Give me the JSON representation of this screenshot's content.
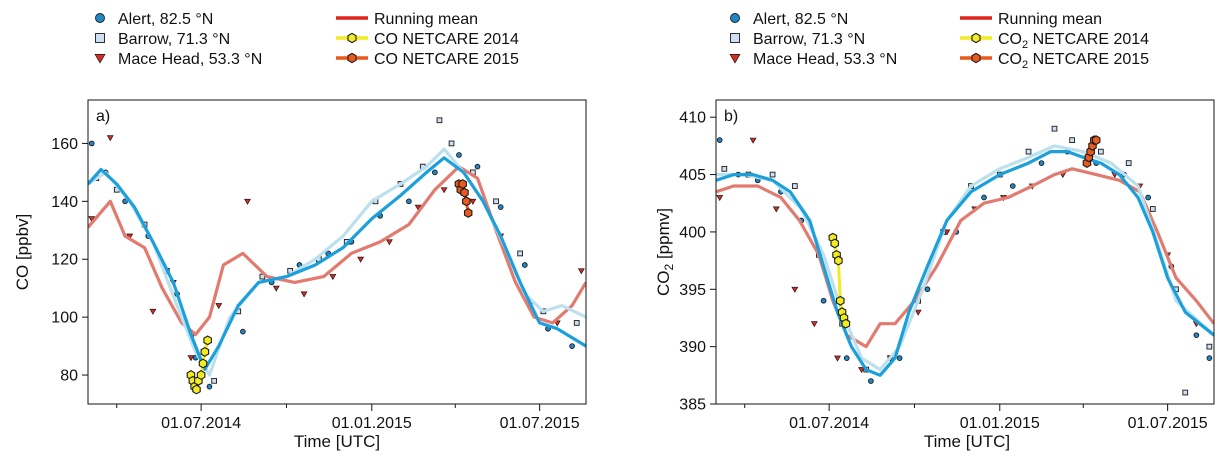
{
  "colors": {
    "alert": "#1e88c6",
    "barrow": "#cde0f2",
    "mace_head": "#d62b22",
    "running_mean": "#e0251c",
    "netcare_2014": "#f2ec1f",
    "netcare_2015": "#ea5a1c",
    "mean_alert": "#1ca0dc",
    "mean_barrow": "#bde0ee",
    "mean_mace_head": "#e27a6f"
  },
  "chart_data": [
    {
      "type": "scatter",
      "panel_label": "a)",
      "xlabel": "Time [UTC]",
      "ylabel": "CO [ppbv]",
      "ylabel_sub": "",
      "ylabel_unit": "",
      "x_ticks": [
        "01.07.2014",
        "01.01.2015",
        "01.07.2015"
      ],
      "x_tick_values": [
        "2014-07-01",
        "2015-01-01",
        "2015-07-01"
      ],
      "xlim": [
        "2014-03-01",
        "2015-08-20"
      ],
      "ylim": [
        70,
        175
      ],
      "y_ticks": [
        80,
        100,
        120,
        140,
        160
      ],
      "grid": false,
      "legend_left": [
        {
          "label": "Alert, 82.5 °N",
          "marker": "circle",
          "color": "#1e88c6"
        },
        {
          "label": "Barrow, 71.3 °N",
          "marker": "square",
          "color": "#cde0f2"
        },
        {
          "label": "Mace Head, 53.3 °N",
          "marker": "triangle-down",
          "color": "#d62b22"
        }
      ],
      "legend_right": [
        {
          "label": "Running mean",
          "sub": "",
          "tail": "",
          "style": "line",
          "color": "#e0251c"
        },
        {
          "label": "CO NETCARE 2014",
          "sub": "",
          "tail": "",
          "style": "line-marker",
          "color": "#f2ec1f"
        },
        {
          "label": "CO NETCARE 2015",
          "sub": "",
          "tail": "",
          "style": "line-marker",
          "color": "#ea5a1c"
        }
      ],
      "series": [
        {
          "name": "Alert, 82.5 °N",
          "kind": "points",
          "x": [
            "2014-03-05",
            "2014-03-20",
            "2014-04-10",
            "2014-05-05",
            "2014-06-05",
            "2014-06-25",
            "2014-07-10",
            "2014-08-15",
            "2014-09-15",
            "2014-10-15",
            "2014-11-15",
            "2014-12-10",
            "2015-01-10",
            "2015-02-10",
            "2015-03-10",
            "2015-04-05",
            "2015-04-25",
            "2015-05-20",
            "2015-06-15",
            "2015-07-10",
            "2015-08-05"
          ],
          "y": [
            160,
            150,
            140,
            128,
            108,
            86,
            76,
            95,
            112,
            118,
            122,
            126,
            135,
            140,
            150,
            156,
            152,
            138,
            118,
            96,
            90
          ]
        },
        {
          "name": "Barrow, 71.3 °N",
          "kind": "points",
          "x": [
            "2014-03-10",
            "2014-04-01",
            "2014-05-01",
            "2014-05-25",
            "2014-06-20",
            "2014-07-15",
            "2014-08-10",
            "2014-09-05",
            "2014-10-05",
            "2014-11-05",
            "2014-12-05",
            "2015-01-05",
            "2015-02-01",
            "2015-02-25",
            "2015-03-15",
            "2015-03-28",
            "2015-04-20",
            "2015-05-15",
            "2015-06-10",
            "2015-07-05",
            "2015-08-10"
          ],
          "y": [
            148,
            144,
            132,
            116,
            94,
            78,
            102,
            114,
            116,
            120,
            126,
            140,
            146,
            152,
            168,
            160,
            150,
            140,
            122,
            102,
            98
          ]
        },
        {
          "name": "Mace Head, 53.3 °N",
          "kind": "points",
          "x": [
            "2014-03-05",
            "2014-03-25",
            "2014-04-15",
            "2014-05-10",
            "2014-06-01",
            "2014-06-20",
            "2014-07-20",
            "2014-08-20",
            "2014-09-20",
            "2014-10-20",
            "2014-11-20",
            "2014-12-20",
            "2015-01-20",
            "2015-02-20",
            "2015-03-20",
            "2015-04-20",
            "2015-05-20",
            "2015-06-20",
            "2015-07-20",
            "2015-08-15"
          ],
          "y": [
            134,
            162,
            128,
            102,
            112,
            86,
            104,
            140,
            110,
            108,
            114,
            120,
            126,
            138,
            144,
            140,
            128,
            104,
            98,
            116
          ]
        },
        {
          "name": "",
          "kind": "mean",
          "station": "Alert",
          "x": [
            "2014-03-01",
            "2014-03-15",
            "2014-04-01",
            "2014-04-20",
            "2014-05-10",
            "2014-06-01",
            "2014-06-20",
            "2014-07-05",
            "2014-07-20",
            "2014-08-10",
            "2014-09-01",
            "2014-10-01",
            "2014-11-01",
            "2014-12-01",
            "2015-01-01",
            "2015-02-01",
            "2015-03-01",
            "2015-03-20",
            "2015-04-10",
            "2015-05-01",
            "2015-05-20",
            "2015-06-10",
            "2015-07-01",
            "2015-07-20",
            "2015-08-20"
          ],
          "y": [
            146,
            151,
            146,
            138,
            126,
            112,
            94,
            82,
            90,
            104,
            112,
            114,
            118,
            124,
            134,
            142,
            150,
            155,
            150,
            140,
            128,
            112,
            98,
            96,
            90
          ]
        },
        {
          "name": "",
          "kind": "mean",
          "station": "Barrow",
          "x": [
            "2014-03-01",
            "2014-03-20",
            "2014-04-15",
            "2014-05-10",
            "2014-06-05",
            "2014-06-25",
            "2014-07-10",
            "2014-08-01",
            "2014-09-01",
            "2014-10-01",
            "2014-11-01",
            "2014-12-01",
            "2015-01-01",
            "2015-02-01",
            "2015-03-01",
            "2015-03-20",
            "2015-04-10",
            "2015-05-01",
            "2015-05-25",
            "2015-06-15",
            "2015-07-05",
            "2015-07-25",
            "2015-08-20"
          ],
          "y": [
            146,
            150,
            140,
            126,
            104,
            88,
            80,
            100,
            112,
            114,
            120,
            128,
            140,
            146,
            152,
            158,
            150,
            140,
            124,
            108,
            102,
            104,
            100
          ]
        },
        {
          "name": "",
          "kind": "mean",
          "station": "Mace Head",
          "x": [
            "2014-03-01",
            "2014-03-25",
            "2014-04-10",
            "2014-05-01",
            "2014-05-20",
            "2014-06-10",
            "2014-06-25",
            "2014-07-10",
            "2014-07-25",
            "2014-08-15",
            "2014-09-10",
            "2014-10-10",
            "2014-11-10",
            "2014-12-10",
            "2015-01-10",
            "2015-02-10",
            "2015-03-10",
            "2015-04-05",
            "2015-04-25",
            "2015-05-15",
            "2015-06-05",
            "2015-06-25",
            "2015-07-15",
            "2015-08-05",
            "2015-08-20"
          ],
          "y": [
            131,
            140,
            128,
            124,
            110,
            98,
            94,
            100,
            118,
            122,
            114,
            112,
            114,
            122,
            126,
            132,
            144,
            152,
            148,
            130,
            112,
            100,
            98,
            104,
            112
          ]
        },
        {
          "name": "CO NETCARE 2014",
          "kind": "netcare",
          "x": [
            "2014-06-20",
            "2014-06-22",
            "2014-06-24",
            "2014-06-26",
            "2014-06-28",
            "2014-07-01",
            "2014-07-03",
            "2014-07-05",
            "2014-07-08"
          ],
          "y": [
            80,
            78,
            76,
            75,
            78,
            80,
            84,
            88,
            92
          ]
        },
        {
          "name": "CO NETCARE 2015",
          "kind": "netcare",
          "x": [
            "2015-04-05",
            "2015-04-07",
            "2015-04-09",
            "2015-04-11",
            "2015-04-13",
            "2015-04-15"
          ],
          "y": [
            146,
            144,
            146,
            143,
            140,
            136
          ]
        }
      ]
    },
    {
      "type": "scatter",
      "panel_label": "b)",
      "xlabel": "Time [UTC]",
      "ylabel": "CO",
      "ylabel_sub": "2",
      "ylabel_unit": " [ppmv]",
      "x_ticks": [
        "01.07.2014",
        "01.01.2015",
        "01.07.2015"
      ],
      "x_tick_values": [
        "2014-07-01",
        "2015-01-01",
        "2015-07-01"
      ],
      "xlim": [
        "2014-03-01",
        "2015-08-20"
      ],
      "ylim": [
        385,
        411.5
      ],
      "y_ticks": [
        385,
        390,
        395,
        400,
        405,
        410
      ],
      "grid": false,
      "legend_left": [
        {
          "label": "Alert, 82.5 °N",
          "marker": "circle",
          "color": "#1e88c6"
        },
        {
          "label": "Barrow, 71.3 °N",
          "marker": "square",
          "color": "#cde0f2"
        },
        {
          "label": "Mace Head, 53.3 °N",
          "marker": "triangle-down",
          "color": "#d62b22"
        }
      ],
      "legend_right": [
        {
          "label": "Running mean",
          "sub": "",
          "tail": "",
          "style": "line",
          "color": "#e0251c"
        },
        {
          "label": "CO",
          "sub": "2",
          "tail": " NETCARE 2014",
          "style": "line-marker",
          "color": "#f2ec1f"
        },
        {
          "label": "CO",
          "sub": "2",
          "tail": " NETCARE 2015",
          "style": "line-marker",
          "color": "#ea5a1c"
        }
      ],
      "series": [
        {
          "name": "Alert, 82.5 °N",
          "kind": "points",
          "x": [
            "2014-03-05",
            "2014-03-25",
            "2014-04-15",
            "2014-05-10",
            "2014-06-01",
            "2014-06-25",
            "2014-07-20",
            "2014-08-15",
            "2014-09-15",
            "2014-10-15",
            "2014-11-15",
            "2014-12-15",
            "2015-01-15",
            "2015-02-15",
            "2015-03-15",
            "2015-04-15",
            "2015-05-15",
            "2015-06-10",
            "2015-07-05",
            "2015-08-01",
            "2015-08-15"
          ],
          "y": [
            408,
            405,
            404.5,
            403.5,
            401,
            394,
            389,
            387,
            389,
            395,
            400,
            403,
            404,
            406,
            407,
            406,
            405,
            403,
            397,
            391,
            389
          ]
        },
        {
          "name": "Barrow, 71.3 °N",
          "kind": "points",
          "x": [
            "2014-03-10",
            "2014-04-05",
            "2014-05-01",
            "2014-05-25",
            "2014-06-20",
            "2014-07-15",
            "2014-08-10",
            "2014-09-05",
            "2014-10-05",
            "2014-11-01",
            "2014-12-01",
            "2015-01-01",
            "2015-02-01",
            "2015-03-01",
            "2015-03-20",
            "2015-04-20",
            "2015-05-20",
            "2015-06-15",
            "2015-07-10",
            "2015-07-20",
            "2015-08-15"
          ],
          "y": [
            405.5,
            405,
            405,
            404,
            398,
            392,
            388,
            389,
            394,
            400,
            404,
            405,
            407,
            409,
            408,
            407,
            406,
            402,
            395,
            386,
            390
          ]
        },
        {
          "name": "Mace Head, 53.3 °N",
          "kind": "points",
          "x": [
            "2014-03-05",
            "2014-04-10",
            "2014-05-05",
            "2014-05-25",
            "2014-06-15",
            "2014-07-10",
            "2014-08-05",
            "2014-09-05",
            "2014-10-05",
            "2014-11-05",
            "2014-12-05",
            "2015-01-05",
            "2015-02-05",
            "2015-03-10",
            "2015-04-05",
            "2015-05-05",
            "2015-06-01",
            "2015-07-01",
            "2015-08-01"
          ],
          "y": [
            403,
            408,
            402,
            395,
            392,
            389,
            388,
            389,
            393,
            400,
            402,
            403,
            404,
            405,
            406,
            405,
            404,
            398,
            392
          ]
        },
        {
          "name": "",
          "kind": "mean",
          "station": "Alert",
          "x": [
            "2014-03-01",
            "2014-03-20",
            "2014-04-10",
            "2014-05-01",
            "2014-05-20",
            "2014-06-10",
            "2014-06-25",
            "2014-07-10",
            "2014-07-25",
            "2014-08-10",
            "2014-08-25",
            "2014-09-10",
            "2014-09-25",
            "2014-10-15",
            "2014-11-05",
            "2014-12-01",
            "2015-01-01",
            "2015-02-01",
            "2015-02-25",
            "2015-03-15",
            "2015-04-01",
            "2015-04-20",
            "2015-05-10",
            "2015-05-30",
            "2015-06-15",
            "2015-07-01",
            "2015-07-20",
            "2015-08-20"
          ],
          "y": [
            404.5,
            405,
            405,
            404.5,
            403.5,
            401,
            397,
            393,
            390,
            388,
            387.5,
            389,
            393,
            397,
            401,
            403.5,
            405,
            406,
            407,
            407,
            406.5,
            406,
            405,
            403,
            400,
            396,
            393,
            391
          ]
        },
        {
          "name": "",
          "kind": "mean",
          "station": "Barrow",
          "x": [
            "2014-03-01",
            "2014-04-01",
            "2014-05-01",
            "2014-06-01",
            "2014-06-25",
            "2014-07-15",
            "2014-08-05",
            "2014-08-25",
            "2014-09-15",
            "2014-10-10",
            "2014-11-05",
            "2014-12-01",
            "2015-01-01",
            "2015-02-01",
            "2015-03-01",
            "2015-04-01",
            "2015-05-01",
            "2015-05-30",
            "2015-06-20",
            "2015-07-10",
            "2015-08-20"
          ],
          "y": [
            405,
            405,
            404.5,
            402,
            398,
            393,
            389,
            388,
            390,
            395,
            401,
            404,
            405.5,
            406.5,
            407.5,
            407,
            406,
            404,
            399,
            394,
            391
          ]
        },
        {
          "name": "",
          "kind": "mean",
          "station": "Mace Head",
          "x": [
            "2014-03-01",
            "2014-03-20",
            "2014-04-15",
            "2014-05-10",
            "2014-05-30",
            "2014-06-20",
            "2014-07-05",
            "2014-07-20",
            "2014-08-10",
            "2014-08-25",
            "2014-09-10",
            "2014-10-01",
            "2014-10-25",
            "2014-11-20",
            "2014-12-15",
            "2015-01-10",
            "2015-02-05",
            "2015-03-01",
            "2015-03-20",
            "2015-04-15",
            "2015-05-10",
            "2015-06-01",
            "2015-06-20",
            "2015-07-10",
            "2015-08-01",
            "2015-08-20"
          ],
          "y": [
            403.5,
            404,
            404,
            403,
            401,
            398,
            394,
            391,
            390,
            392,
            392,
            394,
            397,
            401,
            402.5,
            403,
            404,
            405,
            405.5,
            405,
            404.5,
            403.5,
            400,
            396,
            394,
            392
          ]
        },
        {
          "name": "CO2 NETCARE 2014",
          "kind": "netcare",
          "x": [
            "2014-07-05",
            "2014-07-07",
            "2014-07-09",
            "2014-07-11",
            "2014-07-13",
            "2014-07-15",
            "2014-07-17",
            "2014-07-19"
          ],
          "y": [
            399.5,
            399,
            398,
            397.5,
            394,
            393,
            392.5,
            392
          ]
        },
        {
          "name": "CO2 NETCARE 2015",
          "kind": "netcare",
          "x": [
            "2015-04-05",
            "2015-04-07",
            "2015-04-09",
            "2015-04-11",
            "2015-04-13",
            "2015-04-15"
          ],
          "y": [
            406,
            406.5,
            407,
            407.5,
            408,
            408
          ]
        }
      ]
    }
  ]
}
